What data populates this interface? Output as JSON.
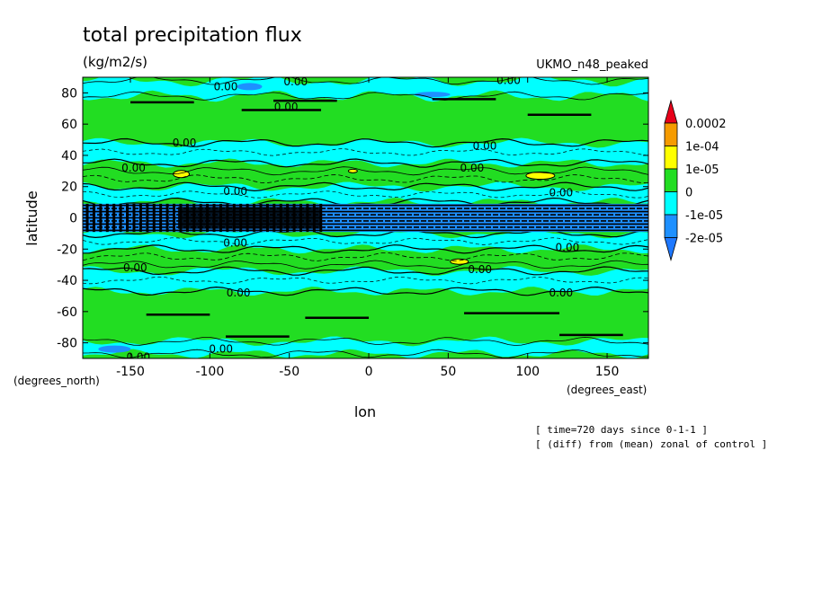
{
  "chart_data": {
    "type": "heatmap",
    "title": "total precipitation flux",
    "units": "(kg/m2/s)",
    "model": "UKMO_n48_peaked",
    "xlabel": "lon",
    "ylabel": "latitude",
    "xunits": "(degrees_east)",
    "yunits": "(degrees_north)",
    "xlim": [
      -180,
      176
    ],
    "ylim": [
      -90,
      90
    ],
    "xticks": [
      -150,
      -100,
      -50,
      0,
      50,
      100,
      150
    ],
    "yticks": [
      80,
      60,
      40,
      20,
      0,
      -20,
      -40,
      -60,
      -80
    ],
    "colorbar": {
      "levels": [
        "0.0002",
        "1e-04",
        "1e-05",
        "0",
        "-1e-05",
        "-2e-05"
      ],
      "colors": [
        "#e8001a",
        "#f59b00",
        "#ffff00",
        "#22dd22",
        "#00ffff",
        "#1e90ff",
        "#1e78ff"
      ]
    },
    "contour_labels": [
      {
        "text": "0.00",
        "lon": -90,
        "lat": 84
      },
      {
        "text": "0.00",
        "lon": -46,
        "lat": 87
      },
      {
        "text": "0.00",
        "lon": -52,
        "lat": 71
      },
      {
        "text": "0.00",
        "lon": 88,
        "lat": 88
      },
      {
        "text": "0.00",
        "lon": -116,
        "lat": 48
      },
      {
        "text": "0.00",
        "lon": 73,
        "lat": 46
      },
      {
        "text": "0.00",
        "lon": -148,
        "lat": 32
      },
      {
        "text": "0.00",
        "lon": 65,
        "lat": 32
      },
      {
        "text": "0.00",
        "lon": -84,
        "lat": 17
      },
      {
        "text": "0.00",
        "lon": 121,
        "lat": 16
      },
      {
        "text": "0.00",
        "lon": -84,
        "lat": -16
      },
      {
        "text": "0.00",
        "lon": 125,
        "lat": -19
      },
      {
        "text": "0.00",
        "lon": -147,
        "lat": -32
      },
      {
        "text": "0.00",
        "lon": 70,
        "lat": -33
      },
      {
        "text": "0.00",
        "lon": -82,
        "lat": -48
      },
      {
        "text": "0.00",
        "lon": 121,
        "lat": -48
      },
      {
        "text": "0.00",
        "lon": -93,
        "lat": -84
      },
      {
        "text": "0.00",
        "lon": -145,
        "lat": -89
      }
    ]
  },
  "annotations": {
    "time": "[ time=720 days since 0-1-1 ]",
    "diff": "[ (diff) from (mean) zonal of control ]"
  }
}
